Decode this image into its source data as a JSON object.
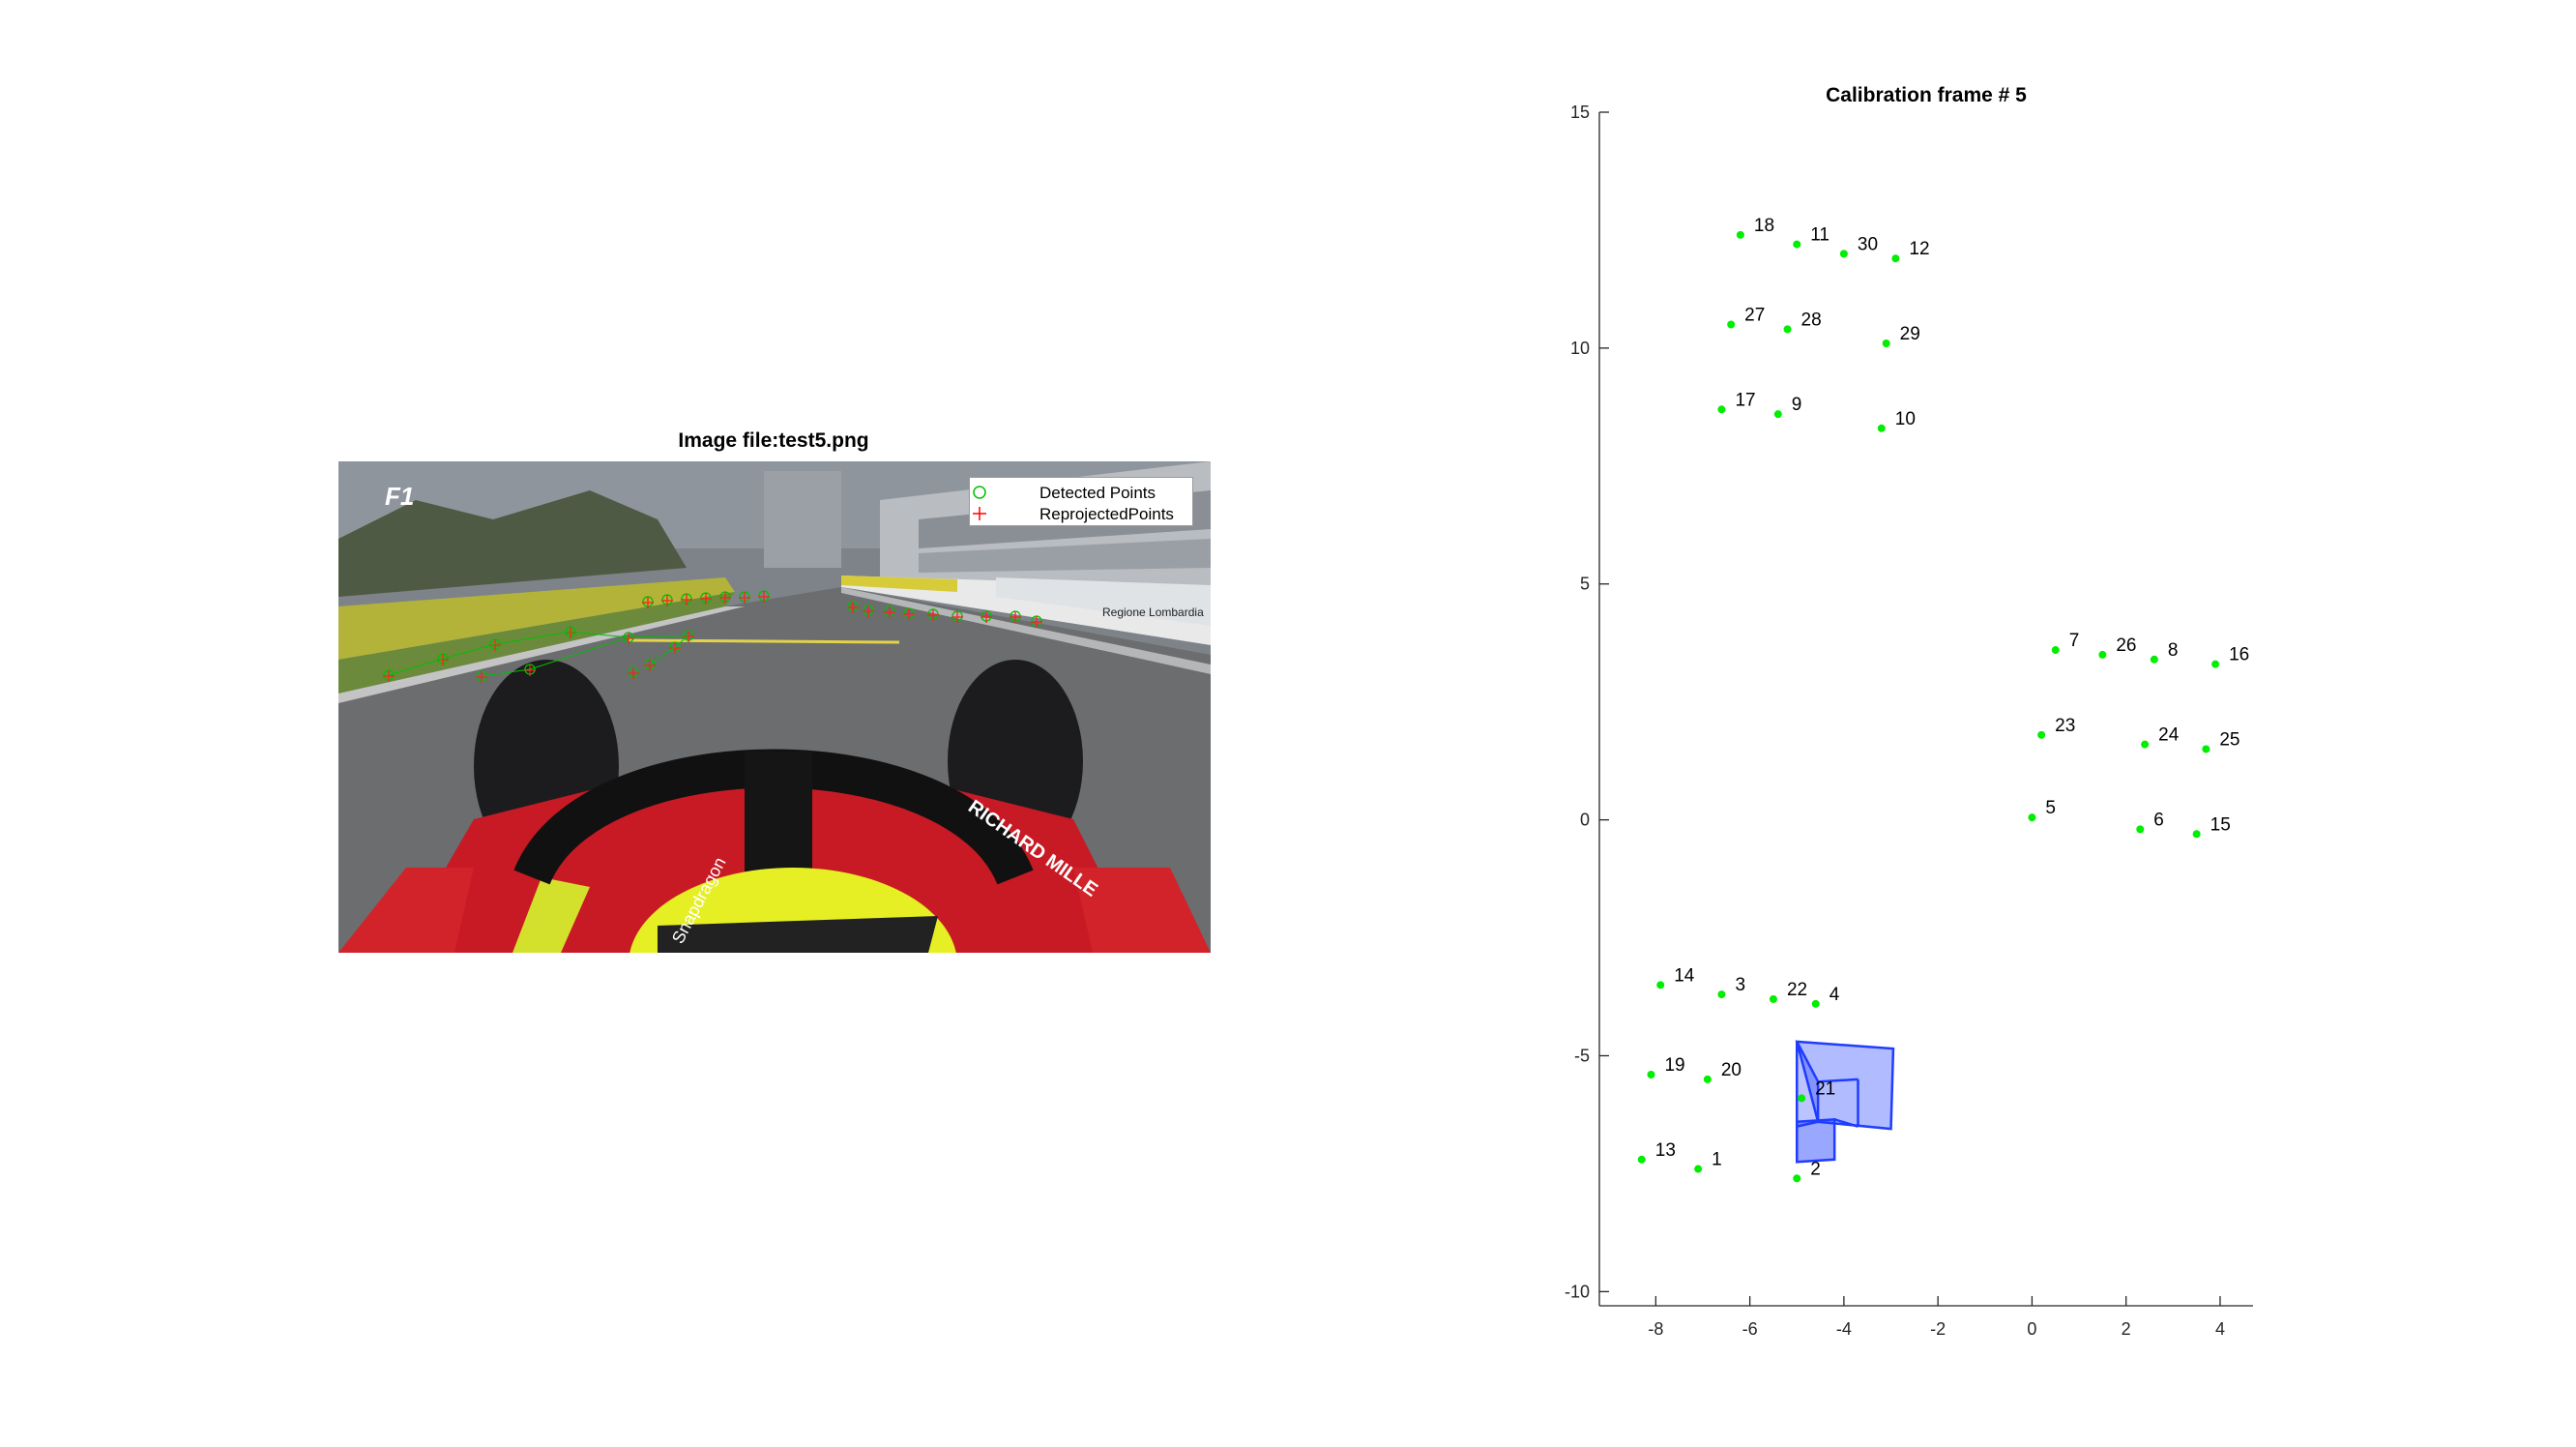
{
  "left_panel": {
    "title": "Image file:test5.png",
    "legend": {
      "detected_label": "Detected Points",
      "reprojected_label": "ReprojectedPoints",
      "detected_color": "#00c000",
      "reprojected_color": "#ff0000"
    },
    "photo_text": {
      "logo": "F1",
      "halo_text": "RICHARD MILLE",
      "sponsor_left": "Snapdragon",
      "sign_text": "Regione Lombardia"
    }
  },
  "chart_data": {
    "type": "scatter",
    "title": "Calibration frame # 5",
    "xlabel": "",
    "ylabel": "",
    "xlim": [
      -9.2,
      4.7
    ],
    "ylim": [
      -10.3,
      15
    ],
    "x_ticks": [
      -8,
      -6,
      -4,
      -2,
      0,
      2,
      4
    ],
    "y_ticks": [
      -10,
      -5,
      0,
      5,
      10,
      15
    ],
    "grid": false,
    "marker_color": "#00ee00",
    "camera_color": "#1f3cff",
    "points": [
      {
        "label": "1",
        "x": -7.1,
        "y": -7.4
      },
      {
        "label": "2",
        "x": -5.0,
        "y": -7.6
      },
      {
        "label": "3",
        "x": -6.6,
        "y": -3.7
      },
      {
        "label": "4",
        "x": -4.6,
        "y": -3.9
      },
      {
        "label": "5",
        "x": 0.0,
        "y": 0.05
      },
      {
        "label": "6",
        "x": 2.3,
        "y": -0.2
      },
      {
        "label": "7",
        "x": 0.5,
        "y": 3.6
      },
      {
        "label": "8",
        "x": 2.6,
        "y": 3.4
      },
      {
        "label": "9",
        "x": -5.4,
        "y": 8.6
      },
      {
        "label": "10",
        "x": -3.2,
        "y": 8.3
      },
      {
        "label": "11",
        "x": -5.0,
        "y": 12.2
      },
      {
        "label": "12",
        "x": -2.9,
        "y": 11.9
      },
      {
        "label": "13",
        "x": -8.3,
        "y": -7.2
      },
      {
        "label": "14",
        "x": -7.9,
        "y": -3.5
      },
      {
        "label": "15",
        "x": 3.5,
        "y": -0.3
      },
      {
        "label": "16",
        "x": 3.9,
        "y": 3.3
      },
      {
        "label": "17",
        "x": -6.6,
        "y": 8.7
      },
      {
        "label": "18",
        "x": -6.2,
        "y": 12.4
      },
      {
        "label": "19",
        "x": -8.1,
        "y": -5.4
      },
      {
        "label": "20",
        "x": -6.9,
        "y": -5.5
      },
      {
        "label": "21",
        "x": -4.9,
        "y": -5.9
      },
      {
        "label": "22",
        "x": -5.5,
        "y": -3.8
      },
      {
        "label": "23",
        "x": 0.2,
        "y": 1.8
      },
      {
        "label": "24",
        "x": 2.4,
        "y": 1.6
      },
      {
        "label": "25",
        "x": 3.7,
        "y": 1.5
      },
      {
        "label": "26",
        "x": 1.5,
        "y": 3.5
      },
      {
        "label": "27",
        "x": -6.4,
        "y": 10.5
      },
      {
        "label": "28",
        "x": -5.2,
        "y": 10.4
      },
      {
        "label": "29",
        "x": -3.1,
        "y": 10.1
      },
      {
        "label": "30",
        "x": -4.0,
        "y": 12.0
      }
    ]
  }
}
